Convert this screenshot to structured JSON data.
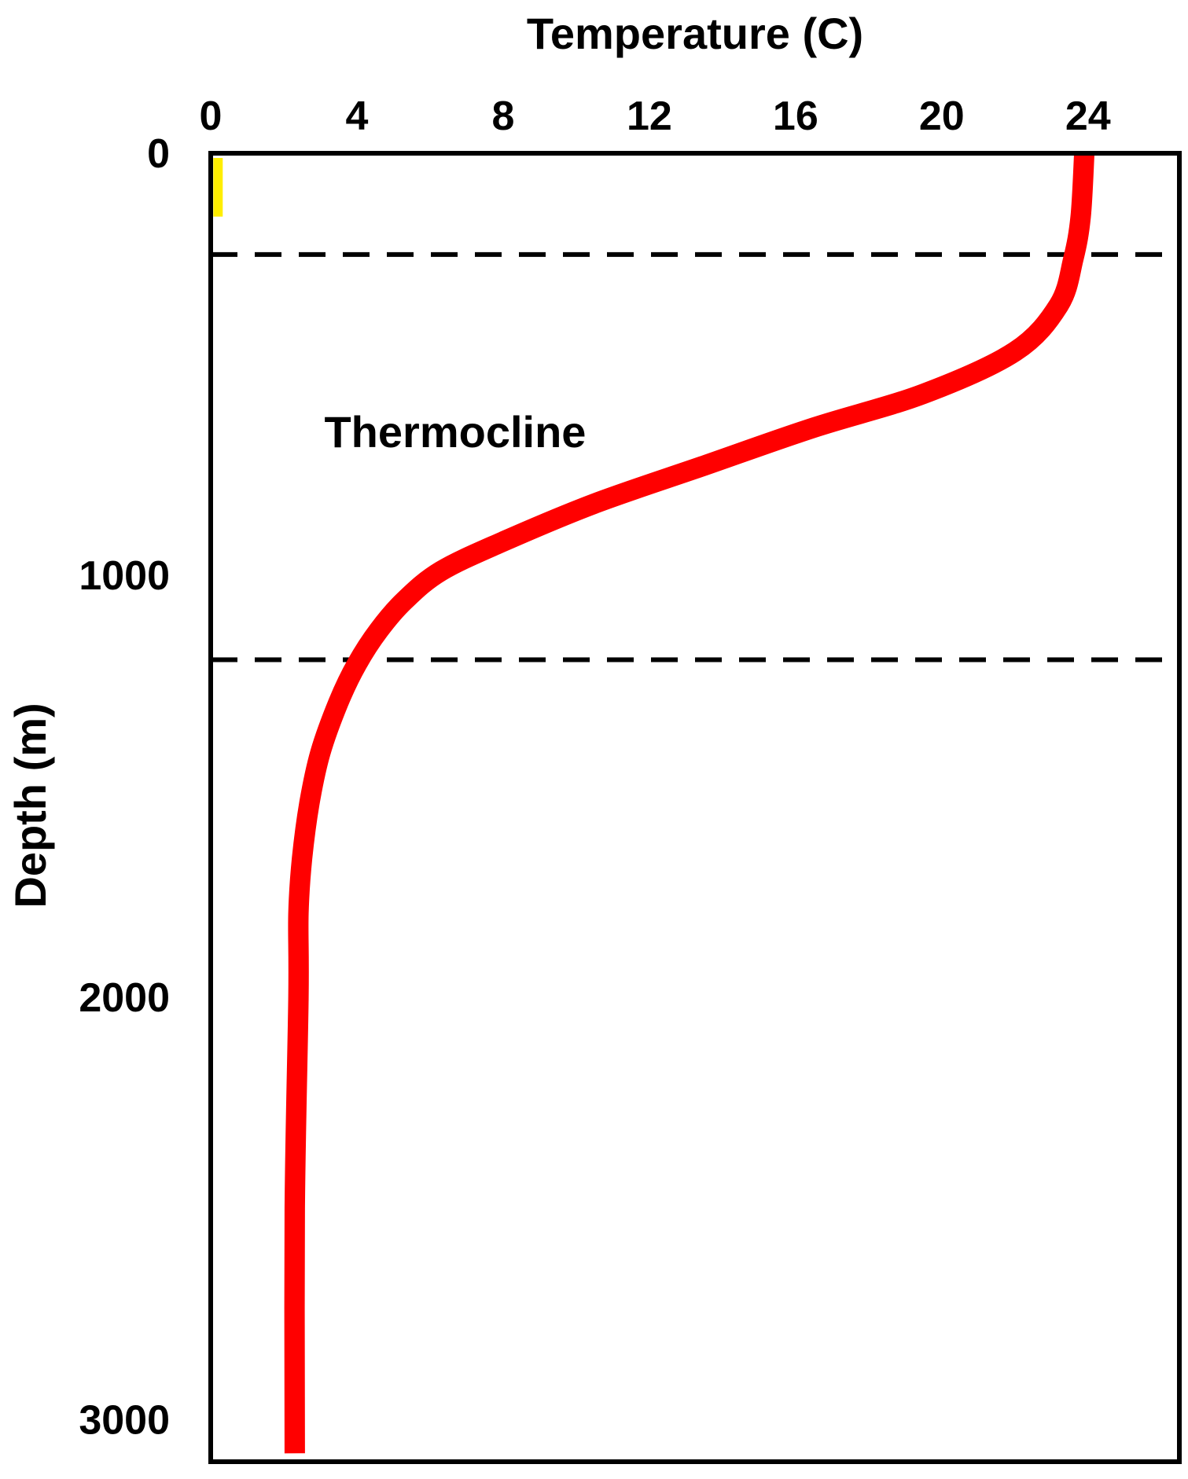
{
  "chart_data": {
    "type": "line",
    "title": "",
    "xlabel": "Temperature (C)",
    "ylabel": "Depth (m)",
    "xlim": [
      0,
      26.5
    ],
    "ylim": [
      0,
      3100
    ],
    "x_ticks": [
      0,
      4,
      8,
      12,
      16,
      20,
      24
    ],
    "y_ticks": [
      0,
      1000,
      2000,
      3000
    ],
    "x_axis_position": "top",
    "y_inverted": true,
    "grid": false,
    "series": [
      {
        "color": "#ff0000",
        "points": [
          {
            "x": 23.9,
            "y": 0
          },
          {
            "x": 23.8,
            "y": 150
          },
          {
            "x": 23.6,
            "y": 250
          },
          {
            "x": 23.2,
            "y": 360
          },
          {
            "x": 22.0,
            "y": 470
          },
          {
            "x": 19.5,
            "y": 570
          },
          {
            "x": 16.5,
            "y": 650
          },
          {
            "x": 13.5,
            "y": 740
          },
          {
            "x": 10.5,
            "y": 830
          },
          {
            "x": 8.0,
            "y": 920
          },
          {
            "x": 6.3,
            "y": 990
          },
          {
            "x": 5.3,
            "y": 1060
          },
          {
            "x": 4.6,
            "y": 1130
          },
          {
            "x": 4.0,
            "y": 1210
          },
          {
            "x": 3.5,
            "y": 1300
          },
          {
            "x": 3.0,
            "y": 1420
          },
          {
            "x": 2.7,
            "y": 1540
          },
          {
            "x": 2.5,
            "y": 1670
          },
          {
            "x": 2.4,
            "y": 1800
          },
          {
            "x": 2.4,
            "y": 2000
          },
          {
            "x": 2.3,
            "y": 2500
          },
          {
            "x": 2.3,
            "y": 3080
          }
        ]
      }
    ],
    "reference_lines": [
      {
        "axis": "y",
        "value": 240,
        "style": "dashed",
        "color": "#000000"
      },
      {
        "axis": "y",
        "value": 1200,
        "style": "dashed",
        "color": "#000000"
      }
    ],
    "marker": {
      "x": 0.2,
      "y_start": 0,
      "y_end": 150,
      "color": "#ffee00"
    },
    "annotations": [
      {
        "text": "Thermocline",
        "x": 3.0,
        "y": 730
      }
    ]
  }
}
